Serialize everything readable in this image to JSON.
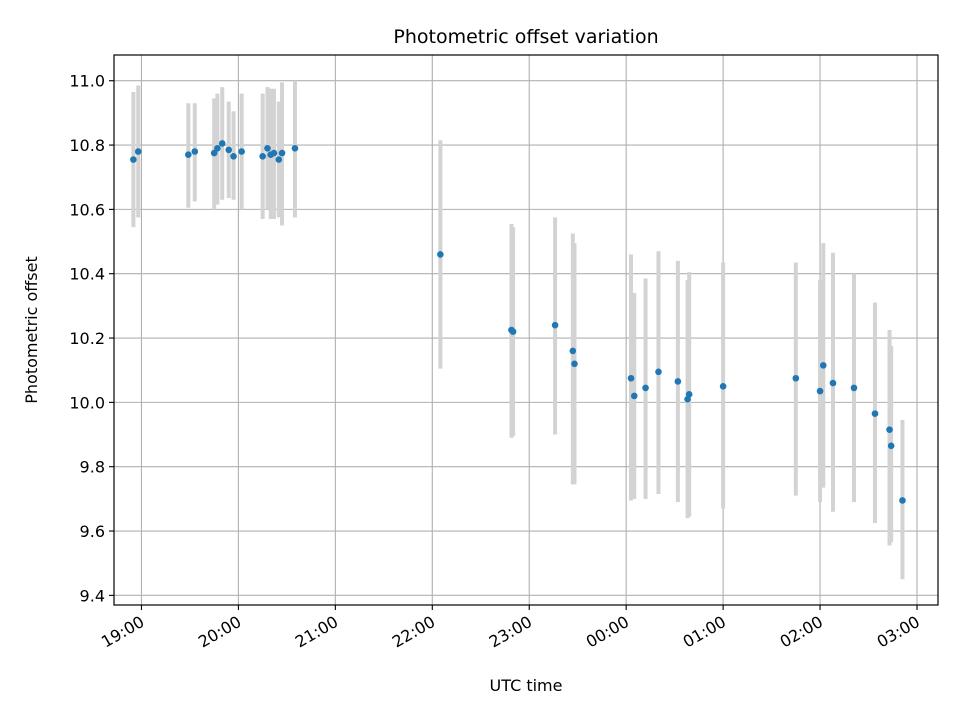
{
  "chart_data": {
    "type": "scatter",
    "title": "Photometric offset variation",
    "xlabel": "UTC time",
    "ylabel": "Photometric offset",
    "grid": true,
    "legend": "none",
    "xlim": [
      "18:43",
      "03:13"
    ],
    "ylim": [
      9.37,
      11.08
    ],
    "x_ticks": [
      "19:00",
      "20:00",
      "21:00",
      "22:00",
      "23:00",
      "00:00",
      "01:00",
      "02:00",
      "03:00"
    ],
    "y_ticks": [
      "9.4",
      "9.6",
      "9.8",
      "10.0",
      "10.2",
      "10.4",
      "10.6",
      "10.8",
      "11.0"
    ],
    "colors": {
      "points": "#1f77b4",
      "error_bars": "#d3d3d3",
      "grid": "#b0b0b0"
    },
    "series": [
      {
        "points": [
          {
            "x": "18:55",
            "y": 10.755,
            "ylow": 10.545,
            "yhigh": 10.965
          },
          {
            "x": "18:58",
            "y": 10.78,
            "ylow": 10.575,
            "yhigh": 10.985
          },
          {
            "x": "19:29",
            "y": 10.77,
            "ylow": 10.605,
            "yhigh": 10.93
          },
          {
            "x": "19:33",
            "y": 10.78,
            "ylow": 10.625,
            "yhigh": 10.93
          },
          {
            "x": "19:45",
            "y": 10.775,
            "ylow": 10.6,
            "yhigh": 10.945
          },
          {
            "x": "19:47",
            "y": 10.79,
            "ylow": 10.615,
            "yhigh": 10.96
          },
          {
            "x": "19:50",
            "y": 10.805,
            "ylow": 10.63,
            "yhigh": 10.98
          },
          {
            "x": "19:54",
            "y": 10.785,
            "ylow": 10.635,
            "yhigh": 10.935
          },
          {
            "x": "19:57",
            "y": 10.765,
            "ylow": 10.63,
            "yhigh": 10.905
          },
          {
            "x": "20:02",
            "y": 10.78,
            "ylow": 10.6,
            "yhigh": 10.96
          },
          {
            "x": "20:15",
            "y": 10.765,
            "ylow": 10.57,
            "yhigh": 10.96
          },
          {
            "x": "20:18",
            "y": 10.79,
            "ylow": 10.6,
            "yhigh": 10.98
          },
          {
            "x": "20:20",
            "y": 10.77,
            "ylow": 10.57,
            "yhigh": 10.975
          },
          {
            "x": "20:22",
            "y": 10.775,
            "ylow": 10.57,
            "yhigh": 10.975
          },
          {
            "x": "20:25",
            "y": 10.755,
            "ylow": 10.575,
            "yhigh": 10.935
          },
          {
            "x": "20:27",
            "y": 10.775,
            "ylow": 10.55,
            "yhigh": 10.995
          },
          {
            "x": "20:35",
            "y": 10.79,
            "ylow": 10.575,
            "yhigh": 11.0
          },
          {
            "x": "22:05",
            "y": 10.46,
            "ylow": 10.105,
            "yhigh": 10.815
          },
          {
            "x": "22:49",
            "y": 10.225,
            "ylow": 9.89,
            "yhigh": 10.555
          },
          {
            "x": "22:50",
            "y": 10.22,
            "ylow": 9.895,
            "yhigh": 10.545
          },
          {
            "x": "23:16",
            "y": 10.24,
            "ylow": 9.9,
            "yhigh": 10.575
          },
          {
            "x": "23:27",
            "y": 10.16,
            "ylow": 9.745,
            "yhigh": 10.525
          },
          {
            "x": "23:28",
            "y": 10.12,
            "ylow": 9.745,
            "yhigh": 10.495
          },
          {
            "x": "00:03",
            "y": 10.075,
            "ylow": 9.695,
            "yhigh": 10.46
          },
          {
            "x": "00:05",
            "y": 10.02,
            "ylow": 9.7,
            "yhigh": 10.34
          },
          {
            "x": "00:12",
            "y": 10.045,
            "ylow": 9.7,
            "yhigh": 10.385
          },
          {
            "x": "00:20",
            "y": 10.095,
            "ylow": 9.715,
            "yhigh": 10.47
          },
          {
            "x": "00:32",
            "y": 10.065,
            "ylow": 9.69,
            "yhigh": 10.44
          },
          {
            "x": "00:38",
            "y": 10.01,
            "ylow": 9.64,
            "yhigh": 10.38
          },
          {
            "x": "00:39",
            "y": 10.025,
            "ylow": 9.645,
            "yhigh": 10.405
          },
          {
            "x": "01:00",
            "y": 10.05,
            "ylow": 9.67,
            "yhigh": 10.435
          },
          {
            "x": "01:45",
            "y": 10.075,
            "ylow": 9.71,
            "yhigh": 10.435
          },
          {
            "x": "02:00",
            "y": 10.035,
            "ylow": 9.69,
            "yhigh": 10.38
          },
          {
            "x": "02:02",
            "y": 10.115,
            "ylow": 9.735,
            "yhigh": 10.495
          },
          {
            "x": "02:08",
            "y": 10.06,
            "ylow": 9.66,
            "yhigh": 10.465
          },
          {
            "x": "02:21",
            "y": 10.045,
            "ylow": 9.69,
            "yhigh": 10.4
          },
          {
            "x": "02:34",
            "y": 9.965,
            "ylow": 9.625,
            "yhigh": 10.31
          },
          {
            "x": "02:43",
            "y": 9.915,
            "ylow": 9.555,
            "yhigh": 10.225
          },
          {
            "x": "02:44",
            "y": 9.865,
            "ylow": 9.565,
            "yhigh": 10.175
          },
          {
            "x": "02:51",
            "y": 9.695,
            "ylow": 9.45,
            "yhigh": 9.945
          }
        ]
      }
    ]
  }
}
